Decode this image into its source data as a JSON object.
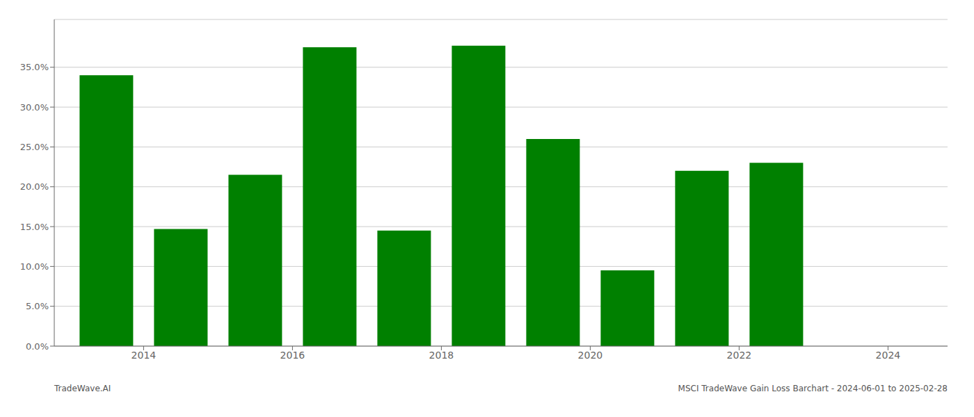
{
  "chart_data": {
    "type": "bar",
    "x": [
      2013.5,
      2014.5,
      2015.5,
      2016.5,
      2017.5,
      2018.5,
      2019.5,
      2020.5,
      2021.5,
      2022.5
    ],
    "values": [
      0.34,
      0.147,
      0.215,
      0.375,
      0.145,
      0.377,
      0.26,
      0.095,
      0.22,
      0.23
    ],
    "color": "#008000",
    "xlim": [
      2012.8,
      2024.8
    ],
    "xticks": [
      2014,
      2016,
      2018,
      2020,
      2022,
      2024
    ],
    "ylim": [
      0.0,
      0.41
    ],
    "yticks": [
      {
        "value": 0.0,
        "label": "0.0%"
      },
      {
        "value": 0.05,
        "label": "5.0%"
      },
      {
        "value": 0.1,
        "label": "10.0%"
      },
      {
        "value": 0.15,
        "label": "15.0%"
      },
      {
        "value": 0.2,
        "label": "20.0%"
      },
      {
        "value": 0.25,
        "label": "25.0%"
      },
      {
        "value": 0.3,
        "label": "30.0%"
      },
      {
        "value": 0.35,
        "label": "35.0%"
      }
    ],
    "grid": true,
    "annotations": [
      "TradeWave.AI",
      "MSCI TradeWave Gain Loss Barchart - 2024-06-01 to 2025-02-28"
    ]
  }
}
